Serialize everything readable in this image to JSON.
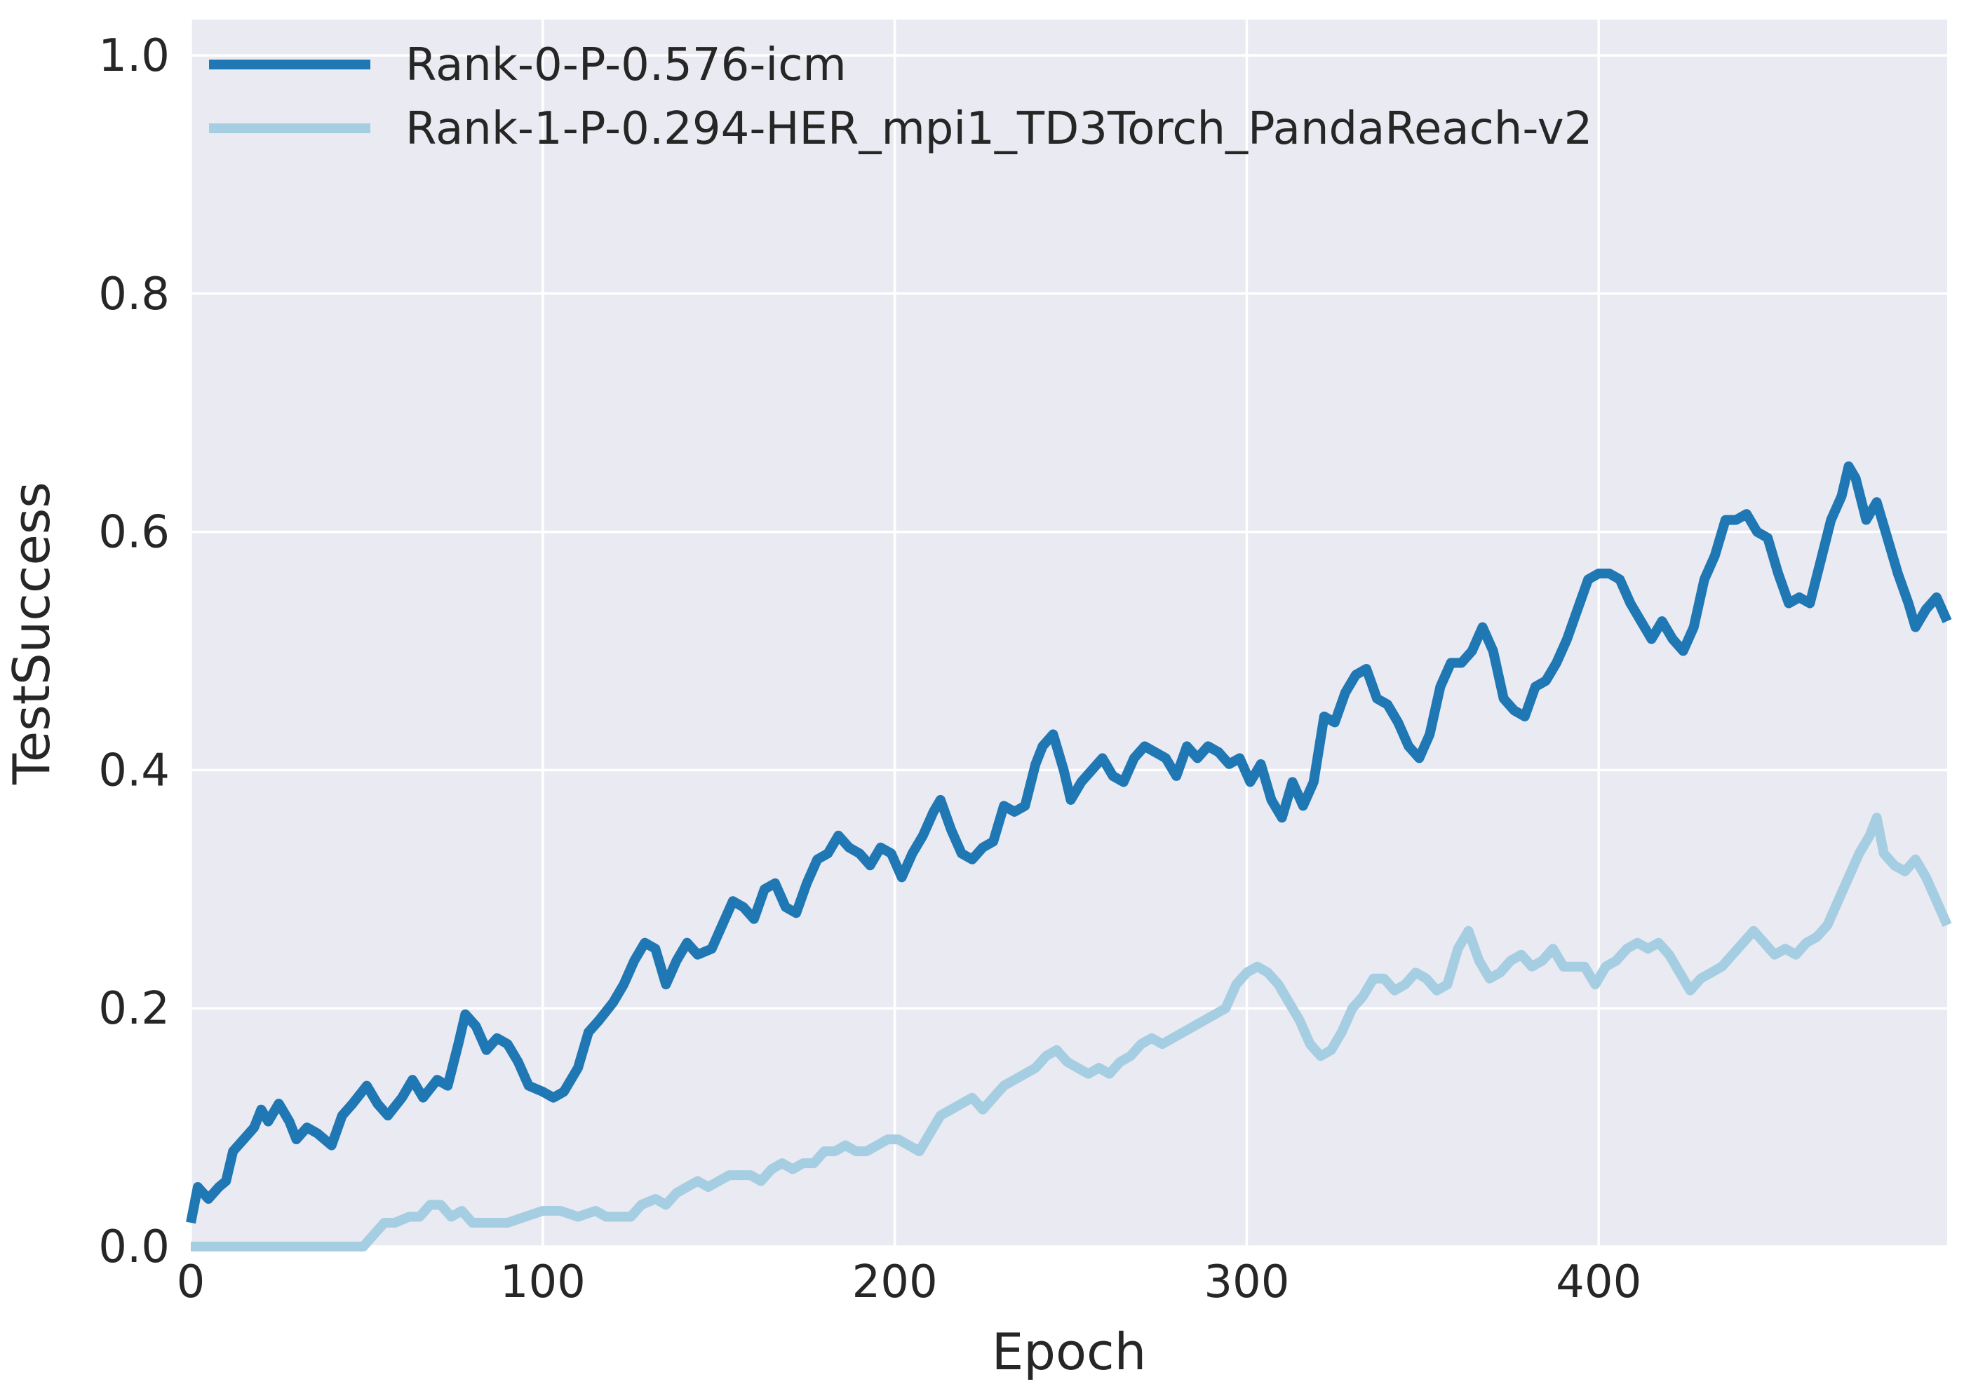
{
  "chart_data": {
    "type": "line",
    "title": "",
    "xlabel": "Epoch",
    "ylabel": "TestSuccess",
    "xlim": [
      0,
      499
    ],
    "ylim": [
      0,
      1.03
    ],
    "x_ticks": [
      0,
      100,
      200,
      300,
      400
    ],
    "x_tick_labels": [
      "0",
      "100",
      "200",
      "300",
      "400"
    ],
    "y_ticks": [
      0,
      0.2,
      0.4,
      0.6,
      0.8,
      1.0
    ],
    "y_tick_labels": [
      "0.0",
      "0.2",
      "0.4",
      "0.6",
      "0.8",
      "1.0"
    ],
    "grid": true,
    "background": "#eaeaf2",
    "legend_position": "top-left",
    "series": [
      {
        "name": "Rank-0-P-0.576-icm",
        "color": "#1f77b4",
        "points": [
          [
            0,
            0.02
          ],
          [
            2,
            0.05
          ],
          [
            5,
            0.04
          ],
          [
            8,
            0.05
          ],
          [
            10,
            0.055
          ],
          [
            12,
            0.08
          ],
          [
            15,
            0.09
          ],
          [
            18,
            0.1
          ],
          [
            20,
            0.115
          ],
          [
            22,
            0.105
          ],
          [
            25,
            0.12
          ],
          [
            28,
            0.105
          ],
          [
            30,
            0.09
          ],
          [
            33,
            0.1
          ],
          [
            36,
            0.095
          ],
          [
            40,
            0.085
          ],
          [
            43,
            0.11
          ],
          [
            46,
            0.12
          ],
          [
            50,
            0.135
          ],
          [
            53,
            0.12
          ],
          [
            56,
            0.11
          ],
          [
            60,
            0.125
          ],
          [
            63,
            0.14
          ],
          [
            66,
            0.125
          ],
          [
            70,
            0.14
          ],
          [
            73,
            0.135
          ],
          [
            76,
            0.17
          ],
          [
            78,
            0.195
          ],
          [
            81,
            0.185
          ],
          [
            84,
            0.165
          ],
          [
            87,
            0.175
          ],
          [
            90,
            0.17
          ],
          [
            93,
            0.155
          ],
          [
            96,
            0.135
          ],
          [
            100,
            0.13
          ],
          [
            103,
            0.125
          ],
          [
            106,
            0.13
          ],
          [
            110,
            0.15
          ],
          [
            113,
            0.18
          ],
          [
            116,
            0.19
          ],
          [
            120,
            0.205
          ],
          [
            123,
            0.22
          ],
          [
            126,
            0.24
          ],
          [
            129,
            0.255
          ],
          [
            132,
            0.25
          ],
          [
            135,
            0.22
          ],
          [
            138,
            0.24
          ],
          [
            141,
            0.255
          ],
          [
            144,
            0.245
          ],
          [
            148,
            0.25
          ],
          [
            151,
            0.27
          ],
          [
            154,
            0.29
          ],
          [
            157,
            0.285
          ],
          [
            160,
            0.275
          ],
          [
            163,
            0.3
          ],
          [
            166,
            0.305
          ],
          [
            169,
            0.285
          ],
          [
            172,
            0.28
          ],
          [
            175,
            0.305
          ],
          [
            178,
            0.325
          ],
          [
            181,
            0.33
          ],
          [
            184,
            0.345
          ],
          [
            187,
            0.335
          ],
          [
            190,
            0.33
          ],
          [
            193,
            0.32
          ],
          [
            196,
            0.335
          ],
          [
            199,
            0.33
          ],
          [
            202,
            0.31
          ],
          [
            205,
            0.33
          ],
          [
            208,
            0.345
          ],
          [
            211,
            0.365
          ],
          [
            213,
            0.375
          ],
          [
            216,
            0.35
          ],
          [
            219,
            0.33
          ],
          [
            222,
            0.325
          ],
          [
            225,
            0.335
          ],
          [
            228,
            0.34
          ],
          [
            231,
            0.37
          ],
          [
            234,
            0.365
          ],
          [
            237,
            0.37
          ],
          [
            240,
            0.405
          ],
          [
            242,
            0.42
          ],
          [
            245,
            0.43
          ],
          [
            248,
            0.4
          ],
          [
            250,
            0.375
          ],
          [
            253,
            0.39
          ],
          [
            256,
            0.4
          ],
          [
            259,
            0.41
          ],
          [
            262,
            0.395
          ],
          [
            265,
            0.39
          ],
          [
            268,
            0.41
          ],
          [
            271,
            0.42
          ],
          [
            274,
            0.415
          ],
          [
            277,
            0.41
          ],
          [
            280,
            0.395
          ],
          [
            283,
            0.42
          ],
          [
            286,
            0.41
          ],
          [
            289,
            0.42
          ],
          [
            292,
            0.415
          ],
          [
            295,
            0.405
          ],
          [
            298,
            0.41
          ],
          [
            301,
            0.39
          ],
          [
            304,
            0.405
          ],
          [
            307,
            0.375
          ],
          [
            310,
            0.36
          ],
          [
            313,
            0.39
          ],
          [
            316,
            0.37
          ],
          [
            319,
            0.39
          ],
          [
            322,
            0.445
          ],
          [
            325,
            0.44
          ],
          [
            328,
            0.465
          ],
          [
            331,
            0.48
          ],
          [
            334,
            0.485
          ],
          [
            337,
            0.46
          ],
          [
            340,
            0.455
          ],
          [
            343,
            0.44
          ],
          [
            346,
            0.42
          ],
          [
            349,
            0.41
          ],
          [
            352,
            0.43
          ],
          [
            355,
            0.47
          ],
          [
            358,
            0.49
          ],
          [
            361,
            0.49
          ],
          [
            364,
            0.5
          ],
          [
            367,
            0.52
          ],
          [
            370,
            0.5
          ],
          [
            373,
            0.46
          ],
          [
            376,
            0.45
          ],
          [
            379,
            0.445
          ],
          [
            382,
            0.47
          ],
          [
            385,
            0.475
          ],
          [
            388,
            0.49
          ],
          [
            391,
            0.51
          ],
          [
            394,
            0.535
          ],
          [
            397,
            0.56
          ],
          [
            400,
            0.565
          ],
          [
            403,
            0.565
          ],
          [
            406,
            0.56
          ],
          [
            409,
            0.54
          ],
          [
            412,
            0.525
          ],
          [
            415,
            0.51
          ],
          [
            418,
            0.525
          ],
          [
            421,
            0.51
          ],
          [
            424,
            0.5
          ],
          [
            427,
            0.52
          ],
          [
            430,
            0.56
          ],
          [
            433,
            0.58
          ],
          [
            436,
            0.61
          ],
          [
            439,
            0.61
          ],
          [
            442,
            0.615
          ],
          [
            445,
            0.6
          ],
          [
            448,
            0.595
          ],
          [
            451,
            0.565
          ],
          [
            454,
            0.54
          ],
          [
            457,
            0.545
          ],
          [
            460,
            0.54
          ],
          [
            463,
            0.575
          ],
          [
            466,
            0.61
          ],
          [
            469,
            0.63
          ],
          [
            471,
            0.655
          ],
          [
            473,
            0.645
          ],
          [
            476,
            0.61
          ],
          [
            479,
            0.625
          ],
          [
            482,
            0.595
          ],
          [
            485,
            0.565
          ],
          [
            488,
            0.54
          ],
          [
            490,
            0.52
          ],
          [
            493,
            0.535
          ],
          [
            496,
            0.545
          ],
          [
            499,
            0.525
          ]
        ]
      },
      {
        "name": "Rank-1-P-0.294-HER_mpi1_TD3Torch_PandaReach-v2",
        "color": "#a6cee3",
        "points": [
          [
            0,
            0.0
          ],
          [
            10,
            0.0
          ],
          [
            20,
            0.0
          ],
          [
            30,
            0.0
          ],
          [
            40,
            0.0
          ],
          [
            49,
            0.0
          ],
          [
            52,
            0.01
          ],
          [
            55,
            0.02
          ],
          [
            58,
            0.02
          ],
          [
            62,
            0.025
          ],
          [
            65,
            0.025
          ],
          [
            68,
            0.035
          ],
          [
            71,
            0.035
          ],
          [
            74,
            0.025
          ],
          [
            77,
            0.03
          ],
          [
            80,
            0.02
          ],
          [
            85,
            0.02
          ],
          [
            90,
            0.02
          ],
          [
            95,
            0.025
          ],
          [
            100,
            0.03
          ],
          [
            105,
            0.03
          ],
          [
            110,
            0.025
          ],
          [
            115,
            0.03
          ],
          [
            118,
            0.025
          ],
          [
            121,
            0.025
          ],
          [
            125,
            0.025
          ],
          [
            128,
            0.035
          ],
          [
            132,
            0.04
          ],
          [
            135,
            0.035
          ],
          [
            138,
            0.045
          ],
          [
            141,
            0.05
          ],
          [
            144,
            0.055
          ],
          [
            147,
            0.05
          ],
          [
            150,
            0.055
          ],
          [
            153,
            0.06
          ],
          [
            156,
            0.06
          ],
          [
            159,
            0.06
          ],
          [
            162,
            0.055
          ],
          [
            165,
            0.065
          ],
          [
            168,
            0.07
          ],
          [
            171,
            0.065
          ],
          [
            174,
            0.07
          ],
          [
            177,
            0.07
          ],
          [
            180,
            0.08
          ],
          [
            183,
            0.08
          ],
          [
            186,
            0.085
          ],
          [
            189,
            0.08
          ],
          [
            192,
            0.08
          ],
          [
            195,
            0.085
          ],
          [
            198,
            0.09
          ],
          [
            201,
            0.09
          ],
          [
            204,
            0.085
          ],
          [
            207,
            0.08
          ],
          [
            210,
            0.095
          ],
          [
            213,
            0.11
          ],
          [
            216,
            0.115
          ],
          [
            219,
            0.12
          ],
          [
            222,
            0.125
          ],
          [
            225,
            0.115
          ],
          [
            228,
            0.125
          ],
          [
            231,
            0.135
          ],
          [
            234,
            0.14
          ],
          [
            237,
            0.145
          ],
          [
            240,
            0.15
          ],
          [
            243,
            0.16
          ],
          [
            246,
            0.165
          ],
          [
            249,
            0.155
          ],
          [
            252,
            0.15
          ],
          [
            255,
            0.145
          ],
          [
            258,
            0.15
          ],
          [
            261,
            0.145
          ],
          [
            264,
            0.155
          ],
          [
            267,
            0.16
          ],
          [
            270,
            0.17
          ],
          [
            273,
            0.175
          ],
          [
            276,
            0.17
          ],
          [
            279,
            0.175
          ],
          [
            282,
            0.18
          ],
          [
            285,
            0.185
          ],
          [
            288,
            0.19
          ],
          [
            291,
            0.195
          ],
          [
            294,
            0.2
          ],
          [
            297,
            0.22
          ],
          [
            300,
            0.23
          ],
          [
            303,
            0.235
          ],
          [
            306,
            0.23
          ],
          [
            309,
            0.22
          ],
          [
            312,
            0.205
          ],
          [
            315,
            0.19
          ],
          [
            318,
            0.17
          ],
          [
            321,
            0.16
          ],
          [
            324,
            0.165
          ],
          [
            327,
            0.18
          ],
          [
            330,
            0.2
          ],
          [
            333,
            0.21
          ],
          [
            336,
            0.225
          ],
          [
            339,
            0.225
          ],
          [
            342,
            0.215
          ],
          [
            345,
            0.22
          ],
          [
            348,
            0.23
          ],
          [
            351,
            0.225
          ],
          [
            354,
            0.215
          ],
          [
            357,
            0.22
          ],
          [
            360,
            0.25
          ],
          [
            363,
            0.265
          ],
          [
            366,
            0.24
          ],
          [
            369,
            0.225
          ],
          [
            372,
            0.23
          ],
          [
            375,
            0.24
          ],
          [
            378,
            0.245
          ],
          [
            381,
            0.235
          ],
          [
            384,
            0.24
          ],
          [
            387,
            0.25
          ],
          [
            390,
            0.235
          ],
          [
            393,
            0.235
          ],
          [
            396,
            0.235
          ],
          [
            399,
            0.22
          ],
          [
            402,
            0.235
          ],
          [
            405,
            0.24
          ],
          [
            408,
            0.25
          ],
          [
            411,
            0.255
          ],
          [
            414,
            0.25
          ],
          [
            417,
            0.255
          ],
          [
            420,
            0.245
          ],
          [
            423,
            0.23
          ],
          [
            426,
            0.215
          ],
          [
            429,
            0.225
          ],
          [
            432,
            0.23
          ],
          [
            435,
            0.235
          ],
          [
            438,
            0.245
          ],
          [
            441,
            0.255
          ],
          [
            444,
            0.265
          ],
          [
            447,
            0.255
          ],
          [
            450,
            0.245
          ],
          [
            453,
            0.25
          ],
          [
            456,
            0.245
          ],
          [
            459,
            0.255
          ],
          [
            462,
            0.26
          ],
          [
            465,
            0.27
          ],
          [
            468,
            0.29
          ],
          [
            471,
            0.31
          ],
          [
            474,
            0.33
          ],
          [
            477,
            0.345
          ],
          [
            479,
            0.36
          ],
          [
            481,
            0.33
          ],
          [
            484,
            0.32
          ],
          [
            487,
            0.315
          ],
          [
            490,
            0.325
          ],
          [
            493,
            0.31
          ],
          [
            496,
            0.29
          ],
          [
            499,
            0.27
          ]
        ]
      }
    ]
  }
}
